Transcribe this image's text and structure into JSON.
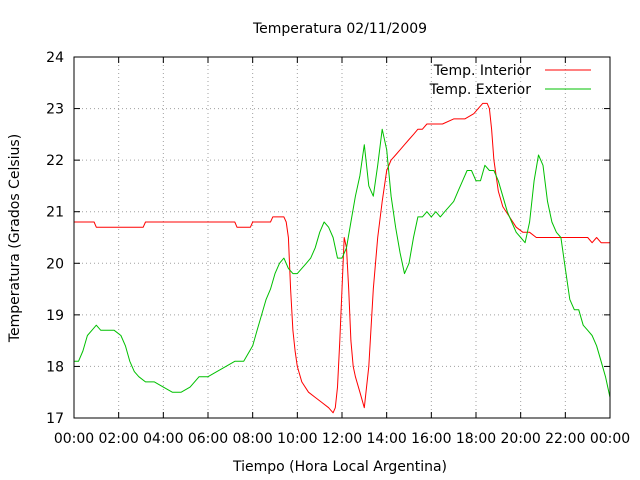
{
  "chart_data": {
    "type": "line",
    "title": "Temperatura 02/11/2009",
    "xlabel": "Tiempo (Hora Local Argentina)",
    "ylabel": "Temperatura (Grados Celsius)",
    "xlim": [
      0,
      24
    ],
    "ylim": [
      17,
      24
    ],
    "xticks": [
      0,
      2,
      4,
      6,
      8,
      10,
      12,
      14,
      16,
      18,
      20,
      22,
      24
    ],
    "xtick_labels": [
      "00:00",
      "02:00",
      "04:00",
      "06:00",
      "08:00",
      "10:00",
      "12:00",
      "14:00",
      "16:00",
      "18:00",
      "20:00",
      "22:00",
      "00:00"
    ],
    "yticks": [
      17,
      18,
      19,
      20,
      21,
      22,
      23,
      24
    ],
    "ytick_labels": [
      "17",
      "18",
      "19",
      "20",
      "21",
      "22",
      "23",
      "24"
    ],
    "grid": true,
    "legend_position": "top-right",
    "series": [
      {
        "name": "Temp. Interior",
        "color": "#ff0000",
        "x": [
          0,
          0.9,
          1,
          3.1,
          3.2,
          7.2,
          7.3,
          7.9,
          8.0,
          8.8,
          8.9,
          9.4,
          9.5,
          9.6,
          9.7,
          9.8,
          9.9,
          10.0,
          10.2,
          10.5,
          10.8,
          11.1,
          11.4,
          11.6,
          11.7,
          11.8,
          11.9,
          12.0,
          12.1,
          12.2,
          12.3,
          12.4,
          12.5,
          12.6,
          12.8,
          13.0,
          13.2,
          13.4,
          13.6,
          13.8,
          14.0,
          14.2,
          14.4,
          14.6,
          14.8,
          15.0,
          15.2,
          15.4,
          15.6,
          15.8,
          16.0,
          16.5,
          17.0,
          17.5,
          17.9,
          18.1,
          18.3,
          18.5,
          18.6,
          18.7,
          18.8,
          18.9,
          19.0,
          19.2,
          19.5,
          19.8,
          20.1,
          20.4,
          20.7,
          21.0,
          21.5,
          22.0,
          22.5,
          23.0,
          23.2,
          23.4,
          23.6,
          23.8,
          24.0
        ],
        "y": [
          20.8,
          20.8,
          20.7,
          20.7,
          20.8,
          20.8,
          20.7,
          20.7,
          20.8,
          20.8,
          20.9,
          20.9,
          20.8,
          20.5,
          19.5,
          18.7,
          18.3,
          18.0,
          17.7,
          17.5,
          17.4,
          17.3,
          17.2,
          17.1,
          17.2,
          17.6,
          18.5,
          19.5,
          20.5,
          20.3,
          19.5,
          18.5,
          18.0,
          17.8,
          17.5,
          17.2,
          18.0,
          19.5,
          20.5,
          21.2,
          21.8,
          22.0,
          22.1,
          22.2,
          22.3,
          22.4,
          22.5,
          22.6,
          22.6,
          22.7,
          22.7,
          22.7,
          22.8,
          22.8,
          22.9,
          23.0,
          23.1,
          23.1,
          23.0,
          22.6,
          22.0,
          21.7,
          21.4,
          21.1,
          20.9,
          20.7,
          20.6,
          20.6,
          20.5,
          20.5,
          20.5,
          20.5,
          20.5,
          20.5,
          20.4,
          20.5,
          20.4,
          20.4,
          20.4
        ]
      },
      {
        "name": "Temp. Exterior",
        "color": "#00c000",
        "x": [
          0,
          0.2,
          0.4,
          0.6,
          0.8,
          1.0,
          1.2,
          1.5,
          1.8,
          2.1,
          2.3,
          2.5,
          2.7,
          2.9,
          3.2,
          3.6,
          4.0,
          4.4,
          4.8,
          5.2,
          5.6,
          6.0,
          6.4,
          6.8,
          7.2,
          7.6,
          8.0,
          8.2,
          8.4,
          8.6,
          8.8,
          9.0,
          9.2,
          9.4,
          9.6,
          9.8,
          10.0,
          10.2,
          10.4,
          10.6,
          10.8,
          11.0,
          11.2,
          11.4,
          11.6,
          11.8,
          12.0,
          12.2,
          12.4,
          12.6,
          12.8,
          13.0,
          13.2,
          13.4,
          13.6,
          13.8,
          14.0,
          14.2,
          14.4,
          14.6,
          14.8,
          15.0,
          15.2,
          15.4,
          15.6,
          15.8,
          16.0,
          16.2,
          16.4,
          16.6,
          16.8,
          17.0,
          17.2,
          17.4,
          17.6,
          17.8,
          18.0,
          18.2,
          18.4,
          18.6,
          18.8,
          19.0,
          19.2,
          19.4,
          19.6,
          19.8,
          20.0,
          20.2,
          20.4,
          20.6,
          20.8,
          21.0,
          21.2,
          21.4,
          21.6,
          21.8,
          22.0,
          22.2,
          22.4,
          22.6,
          22.8,
          23.0,
          23.2,
          23.4,
          23.6,
          23.8,
          24.0
        ],
        "y": [
          18.1,
          18.1,
          18.3,
          18.6,
          18.7,
          18.8,
          18.7,
          18.7,
          18.7,
          18.6,
          18.4,
          18.1,
          17.9,
          17.8,
          17.7,
          17.7,
          17.6,
          17.5,
          17.5,
          17.6,
          17.8,
          17.8,
          17.9,
          18.0,
          18.1,
          18.1,
          18.4,
          18.7,
          19.0,
          19.3,
          19.5,
          19.8,
          20.0,
          20.1,
          19.9,
          19.8,
          19.8,
          19.9,
          20.0,
          20.1,
          20.3,
          20.6,
          20.8,
          20.7,
          20.5,
          20.1,
          20.1,
          20.3,
          20.8,
          21.3,
          21.7,
          22.3,
          21.5,
          21.3,
          21.9,
          22.6,
          22.2,
          21.3,
          20.7,
          20.2,
          19.8,
          20.0,
          20.5,
          20.9,
          20.9,
          21.0,
          20.9,
          21.0,
          20.9,
          21.0,
          21.1,
          21.2,
          21.4,
          21.6,
          21.8,
          21.8,
          21.6,
          21.6,
          21.9,
          21.8,
          21.8,
          21.6,
          21.3,
          21.0,
          20.8,
          20.6,
          20.5,
          20.4,
          20.8,
          21.6,
          22.1,
          21.9,
          21.2,
          20.8,
          20.6,
          20.5,
          19.9,
          19.3,
          19.1,
          19.1,
          18.8,
          18.7,
          18.6,
          18.4,
          18.1,
          17.8,
          17.4
        ]
      }
    ]
  }
}
